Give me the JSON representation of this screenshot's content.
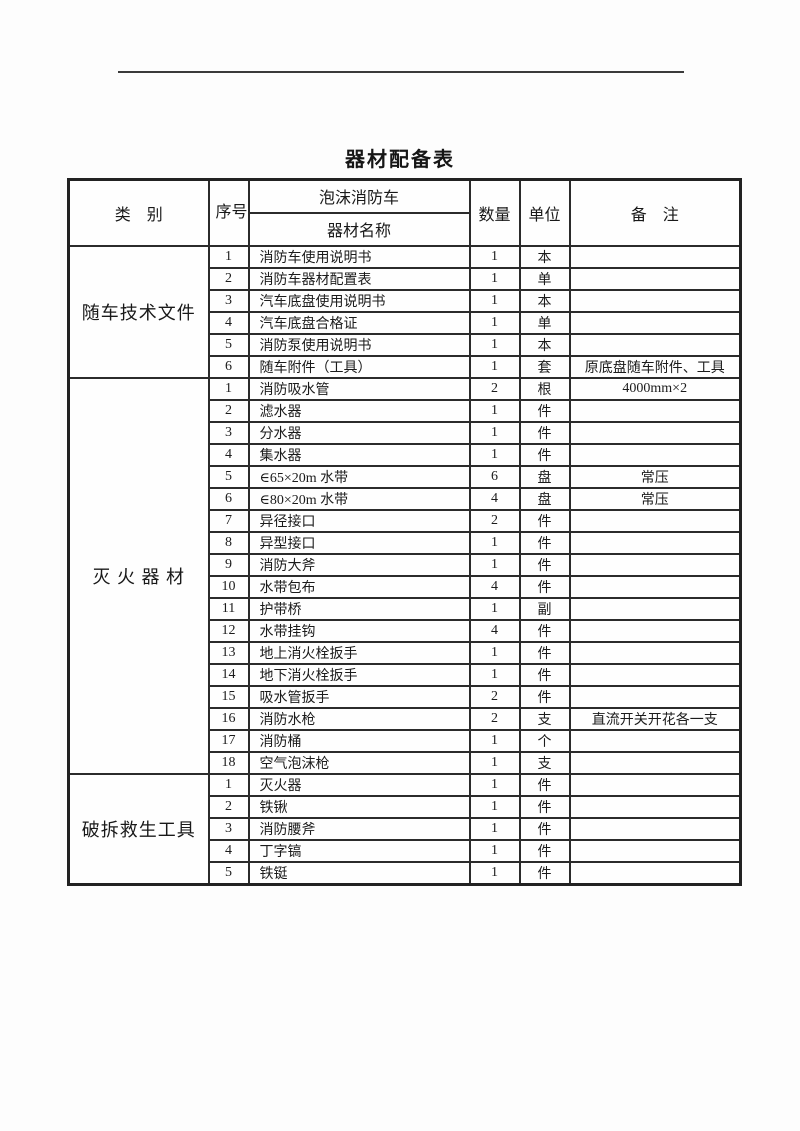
{
  "page": {
    "title": "器材配备表"
  },
  "colors": {
    "background": "#fdfdfd",
    "border": "#2b2b2b",
    "text": "#1b1b1b"
  },
  "table": {
    "headers": {
      "category": "类　别",
      "serial": "序号",
      "vehicle_type": "泡沫消防车",
      "equipment_name": "器材名称",
      "quantity": "数量",
      "unit": "单位",
      "remarks": "备　注"
    },
    "sections": [
      {
        "category": "随车技术文件",
        "rows": [
          {
            "no": "1",
            "name": "消防车使用说明书",
            "qty": "1",
            "unit": "本",
            "remark": ""
          },
          {
            "no": "2",
            "name": "消防车器材配置表",
            "qty": "1",
            "unit": "单",
            "remark": ""
          },
          {
            "no": "3",
            "name": "汽车底盘使用说明书",
            "qty": "1",
            "unit": "本",
            "remark": ""
          },
          {
            "no": "4",
            "name": "汽车底盘合格证",
            "qty": "1",
            "unit": "单",
            "remark": ""
          },
          {
            "no": "5",
            "name": "消防泵使用说明书",
            "qty": "1",
            "unit": "本",
            "remark": ""
          },
          {
            "no": "6",
            "name": "随车附件（工具）",
            "qty": "1",
            "unit": "套",
            "remark": "原底盘随车附件、工具"
          }
        ]
      },
      {
        "category": "灭 火 器 材",
        "rows": [
          {
            "no": "1",
            "name": "消防吸水管",
            "qty": "2",
            "unit": "根",
            "remark": "4000mm×2"
          },
          {
            "no": "2",
            "name": "滤水器",
            "qty": "1",
            "unit": "件",
            "remark": ""
          },
          {
            "no": "3",
            "name": "分水器",
            "qty": "1",
            "unit": "件",
            "remark": ""
          },
          {
            "no": "4",
            "name": "集水器",
            "qty": "1",
            "unit": "件",
            "remark": ""
          },
          {
            "no": "5",
            "name": "∈65×20m 水带",
            "qty": "6",
            "unit": "盘",
            "remark": "常压"
          },
          {
            "no": "6",
            "name": "∈80×20m 水带",
            "qty": "4",
            "unit": "盘",
            "remark": "常压"
          },
          {
            "no": "7",
            "name": "异径接口",
            "qty": "2",
            "unit": "件",
            "remark": ""
          },
          {
            "no": "8",
            "name": "异型接口",
            "qty": "1",
            "unit": "件",
            "remark": ""
          },
          {
            "no": "9",
            "name": "消防大斧",
            "qty": "1",
            "unit": "件",
            "remark": ""
          },
          {
            "no": "10",
            "name": "水带包布",
            "qty": "4",
            "unit": "件",
            "remark": ""
          },
          {
            "no": "11",
            "name": "护带桥",
            "qty": "1",
            "unit": "副",
            "remark": ""
          },
          {
            "no": "12",
            "name": "水带挂钩",
            "qty": "4",
            "unit": "件",
            "remark": ""
          },
          {
            "no": "13",
            "name": "地上消火栓扳手",
            "qty": "1",
            "unit": "件",
            "remark": ""
          },
          {
            "no": "14",
            "name": "地下消火栓扳手",
            "qty": "1",
            "unit": "件",
            "remark": ""
          },
          {
            "no": "15",
            "name": "吸水管扳手",
            "qty": "2",
            "unit": "件",
            "remark": ""
          },
          {
            "no": "16",
            "name": "消防水枪",
            "qty": "2",
            "unit": "支",
            "remark": "直流开关开花各一支"
          },
          {
            "no": "17",
            "name": "消防桶",
            "qty": "1",
            "unit": "个",
            "remark": ""
          },
          {
            "no": "18",
            "name": "空气泡沫枪",
            "qty": "1",
            "unit": "支",
            "remark": ""
          }
        ]
      },
      {
        "category": "破拆救生工具",
        "rows": [
          {
            "no": "1",
            "name": "灭火器",
            "qty": "1",
            "unit": "件",
            "remark": ""
          },
          {
            "no": "2",
            "name": "铁锹",
            "qty": "1",
            "unit": "件",
            "remark": ""
          },
          {
            "no": "3",
            "name": "消防腰斧",
            "qty": "1",
            "unit": "件",
            "remark": ""
          },
          {
            "no": "4",
            "name": "丁字镐",
            "qty": "1",
            "unit": "件",
            "remark": ""
          },
          {
            "no": "5",
            "name": "铁铤",
            "qty": "1",
            "unit": "件",
            "remark": ""
          }
        ]
      }
    ]
  }
}
